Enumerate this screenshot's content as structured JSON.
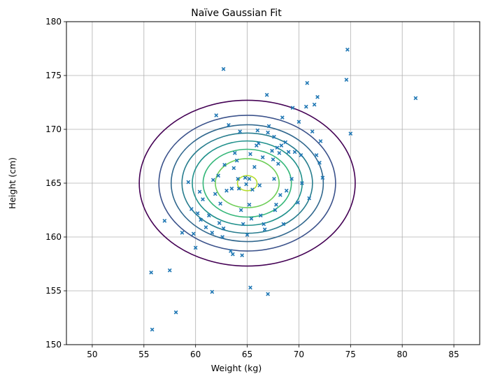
{
  "chart_data": {
    "type": "scatter",
    "title": "Naïve Gaussian Fit",
    "xlabel": "Weight (kg)",
    "ylabel": "Height (cm)",
    "xlim": [
      47.5,
      87.5
    ],
    "ylim": [
      150,
      180
    ],
    "xticks": [
      50,
      55,
      60,
      65,
      70,
      75,
      80,
      85
    ],
    "yticks": [
      150,
      155,
      160,
      165,
      170,
      175,
      180
    ],
    "grid": true,
    "marker": "x",
    "point_color": "#1f77b4",
    "contours": {
      "center": [
        65,
        165
      ],
      "sigma_x": 4.75,
      "sigma_y": 3.5,
      "radii_sigma": [
        2.2,
        1.8,
        1.55,
        1.33,
        1.12,
        0.9,
        0.65,
        0.2
      ],
      "colors": [
        "#440154",
        "#3b528b",
        "#31688e",
        "#287d8e",
        "#21918c",
        "#35b779",
        "#6ece58",
        "#b5de2b"
      ]
    },
    "points": [
      [
        55.8,
        151.4
      ],
      [
        55.7,
        156.7
      ],
      [
        57.0,
        161.5
      ],
      [
        57.5,
        156.9
      ],
      [
        58.1,
        153.0
      ],
      [
        58.7,
        160.4
      ],
      [
        59.3,
        165.1
      ],
      [
        59.6,
        162.6
      ],
      [
        59.8,
        160.3
      ],
      [
        60.0,
        159.0
      ],
      [
        60.2,
        162.2
      ],
      [
        60.4,
        164.2
      ],
      [
        60.5,
        161.6
      ],
      [
        60.7,
        163.5
      ],
      [
        61.0,
        160.9
      ],
      [
        61.3,
        162.0
      ],
      [
        61.6,
        160.4
      ],
      [
        61.7,
        165.3
      ],
      [
        61.6,
        154.9
      ],
      [
        61.9,
        164.0
      ],
      [
        62.0,
        171.3
      ],
      [
        62.2,
        165.7
      ],
      [
        62.3,
        161.3
      ],
      [
        62.4,
        163.1
      ],
      [
        62.6,
        160.0
      ],
      [
        62.7,
        160.8
      ],
      [
        62.7,
        175.6
      ],
      [
        62.8,
        166.7
      ],
      [
        63.0,
        164.3
      ],
      [
        63.2,
        170.4
      ],
      [
        63.4,
        158.7
      ],
      [
        63.5,
        164.5
      ],
      [
        63.6,
        158.4
      ],
      [
        63.7,
        166.4
      ],
      [
        63.8,
        167.8
      ],
      [
        64.0,
        167.1
      ],
      [
        64.1,
        165.4
      ],
      [
        64.2,
        164.5
      ],
      [
        64.3,
        169.8
      ],
      [
        64.4,
        162.5
      ],
      [
        64.5,
        158.3
      ],
      [
        64.6,
        161.2
      ],
      [
        64.8,
        165.5
      ],
      [
        64.9,
        164.9
      ],
      [
        65.0,
        160.2
      ],
      [
        65.2,
        163.0
      ],
      [
        65.2,
        165.4
      ],
      [
        65.3,
        167.7
      ],
      [
        65.3,
        155.3
      ],
      [
        65.4,
        161.7
      ],
      [
        65.5,
        164.4
      ],
      [
        65.7,
        166.5
      ],
      [
        65.9,
        168.5
      ],
      [
        66.0,
        169.9
      ],
      [
        66.1,
        168.7
      ],
      [
        66.2,
        164.8
      ],
      [
        66.3,
        162.0
      ],
      [
        66.5,
        167.4
      ],
      [
        66.6,
        161.2
      ],
      [
        66.7,
        160.7
      ],
      [
        66.9,
        173.2
      ],
      [
        67.0,
        154.7
      ],
      [
        67.0,
        169.7
      ],
      [
        67.1,
        170.3
      ],
      [
        67.4,
        168.0
      ],
      [
        67.5,
        167.2
      ],
      [
        67.6,
        169.3
      ],
      [
        67.6,
        165.4
      ],
      [
        67.7,
        162.5
      ],
      [
        67.8,
        163.0
      ],
      [
        67.9,
        168.3
      ],
      [
        68.0,
        166.8
      ],
      [
        68.1,
        167.8
      ],
      [
        68.2,
        163.9
      ],
      [
        68.3,
        168.5
      ],
      [
        68.4,
        171.1
      ],
      [
        68.5,
        161.2
      ],
      [
        68.7,
        168.8
      ],
      [
        68.8,
        164.3
      ],
      [
        69.0,
        167.9
      ],
      [
        69.3,
        165.4
      ],
      [
        69.4,
        172.0
      ],
      [
        69.6,
        167.9
      ],
      [
        69.9,
        163.2
      ],
      [
        70.0,
        170.7
      ],
      [
        70.2,
        167.6
      ],
      [
        70.3,
        165.0
      ],
      [
        70.7,
        172.1
      ],
      [
        70.8,
        174.3
      ],
      [
        71.0,
        163.6
      ],
      [
        71.3,
        169.8
      ],
      [
        71.5,
        172.3
      ],
      [
        71.7,
        167.6
      ],
      [
        71.8,
        173.0
      ],
      [
        72.0,
        166.9
      ],
      [
        72.1,
        168.9
      ],
      [
        72.3,
        165.5
      ],
      [
        74.6,
        174.6
      ],
      [
        74.7,
        177.4
      ],
      [
        75.0,
        169.6
      ],
      [
        81.3,
        172.9
      ]
    ]
  }
}
